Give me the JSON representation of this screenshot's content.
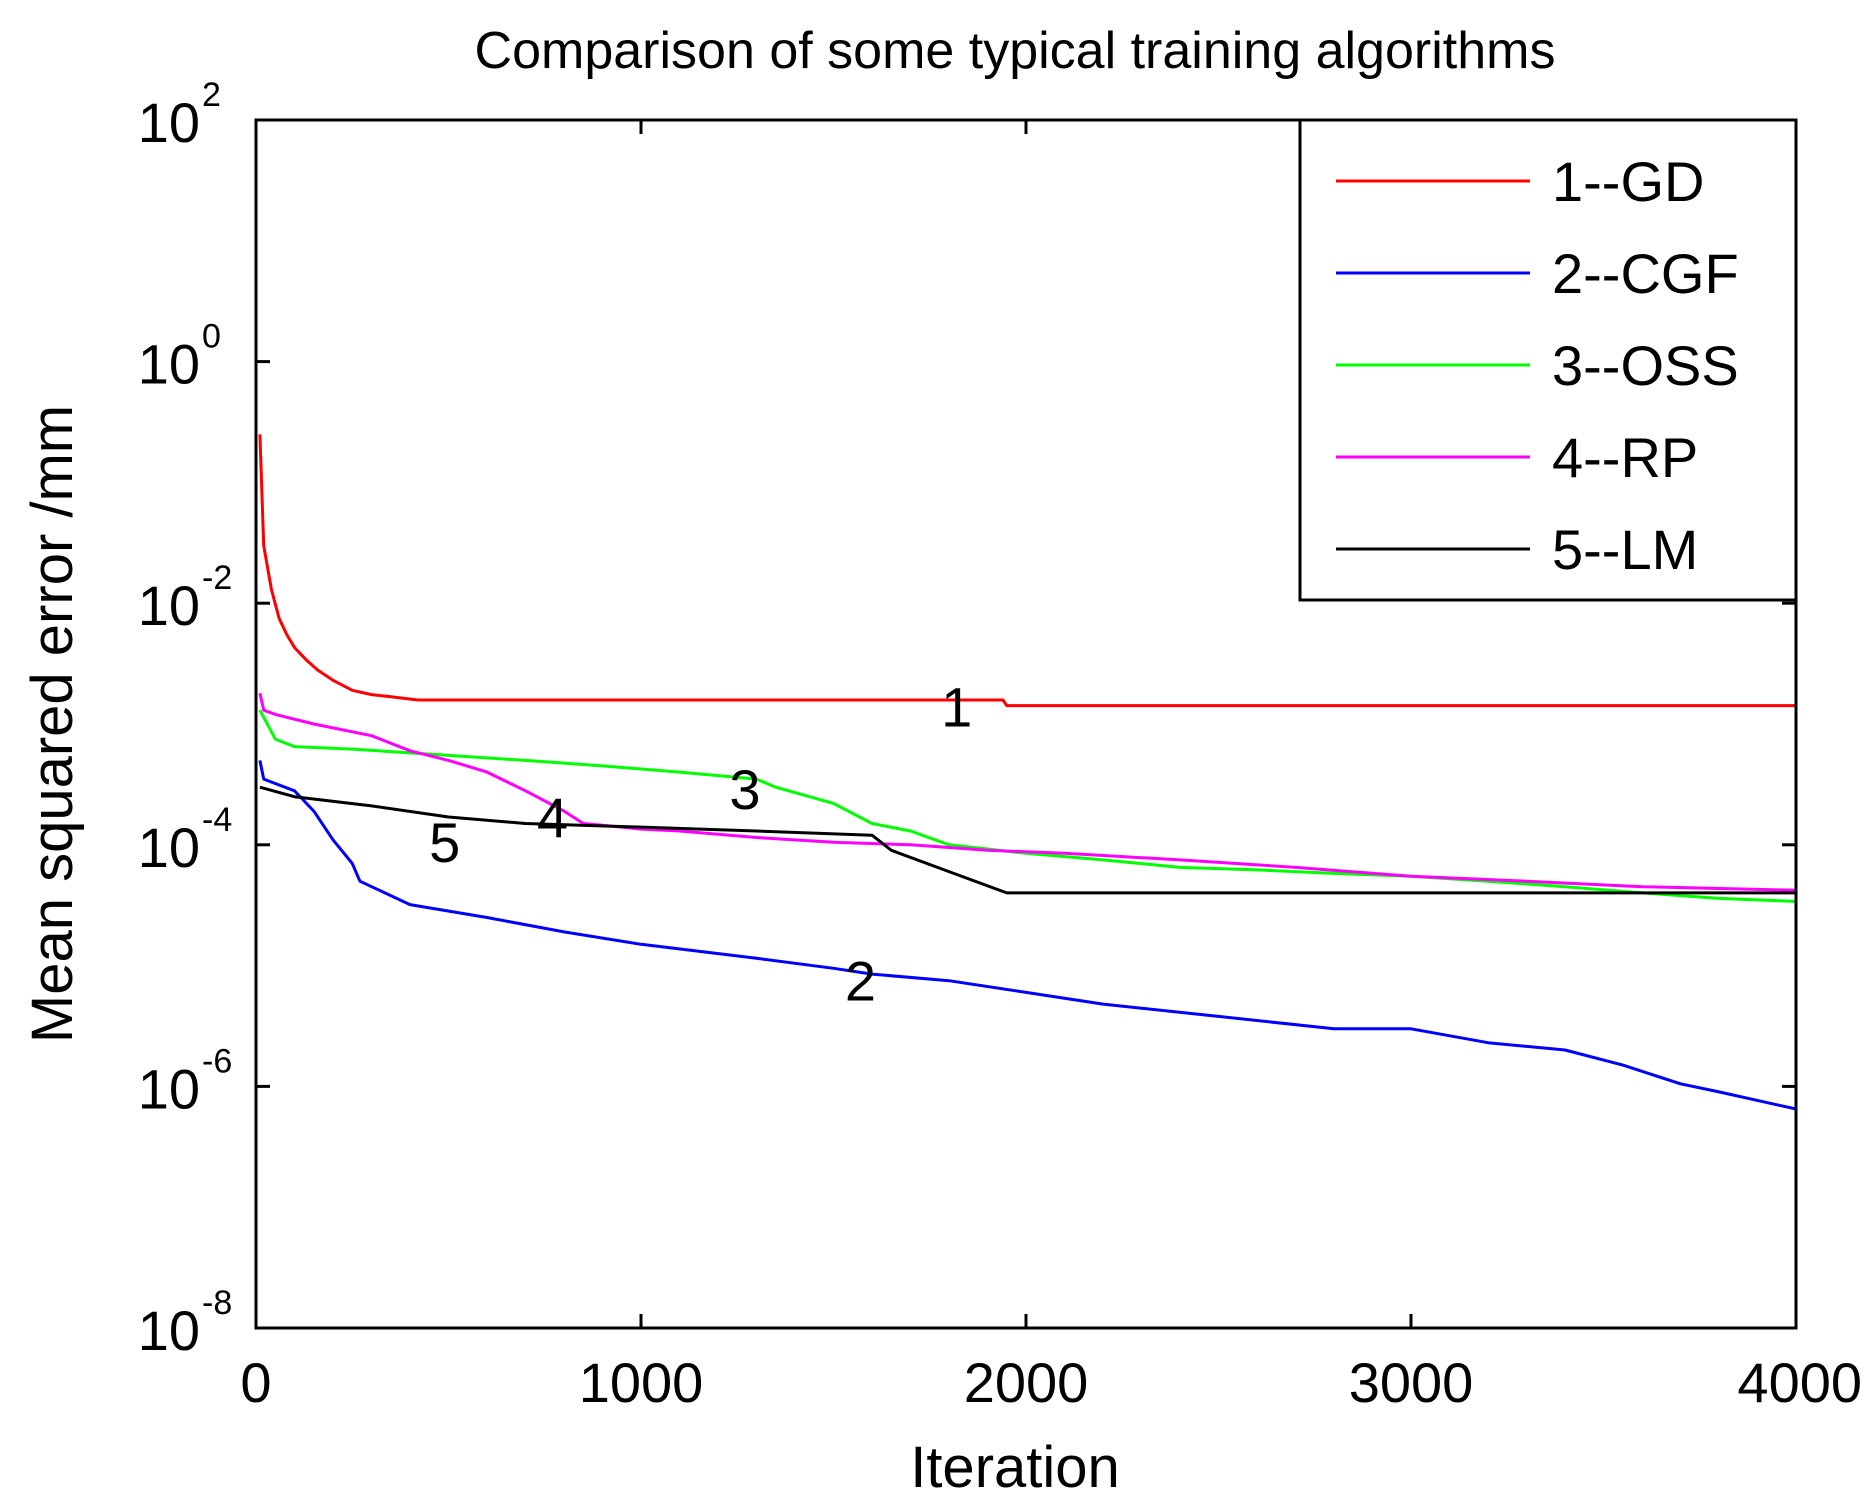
{
  "chart_data": {
    "type": "line",
    "title": "Comparison of some typical training algorithms",
    "xlabel": "Iteration",
    "ylabel": "Mean squared error /mm",
    "xlim": [
      0,
      4000
    ],
    "ylim": [
      1e-08,
      100
    ],
    "yscale": "log",
    "grid": false,
    "legend_position": "top-right",
    "x_ticks": [
      {
        "value": 0,
        "label": "0"
      },
      {
        "value": 1000,
        "label": "1000"
      },
      {
        "value": 2000,
        "label": "2000"
      },
      {
        "value": 3000,
        "label": "3000"
      },
      {
        "value": 4000,
        "label": "4000"
      }
    ],
    "y_ticks": [
      {
        "value": 1e-08,
        "base": "10",
        "exp": "-8"
      },
      {
        "value": 1e-06,
        "base": "10",
        "exp": "-6"
      },
      {
        "value": 0.0001,
        "base": "10",
        "exp": "-4"
      },
      {
        "value": 0.01,
        "base": "10",
        "exp": "-2"
      },
      {
        "value": 1,
        "base": "10",
        "exp": "0"
      },
      {
        "value": 100,
        "base": "10",
        "exp": "2"
      }
    ],
    "series": [
      {
        "name": "1--GD",
        "color": "#ff0000",
        "x": [
          10,
          20,
          40,
          60,
          80,
          100,
          130,
          160,
          200,
          250,
          300,
          350,
          420,
          600,
          1000,
          1500,
          1940,
          1950,
          2500,
          3000,
          3500,
          4000
        ],
        "y": [
          0.25,
          0.03,
          0.013,
          0.0075,
          0.0055,
          0.0043,
          0.0034,
          0.0028,
          0.0023,
          0.0019,
          0.00175,
          0.00168,
          0.00158,
          0.00158,
          0.00158,
          0.00158,
          0.00158,
          0.00142,
          0.00142,
          0.00142,
          0.00142,
          0.00142
        ]
      },
      {
        "name": "2--CGF",
        "color": "#0000ff",
        "x": [
          10,
          20,
          100,
          150,
          200,
          250,
          270,
          350,
          400,
          600,
          800,
          1000,
          1300,
          1500,
          1600,
          1800,
          2000,
          2200,
          2500,
          2800,
          3000,
          3200,
          3400,
          3550,
          3700,
          3800,
          4000
        ],
        "y": [
          0.0005,
          0.00035,
          0.00028,
          0.00019,
          0.00011,
          7e-05,
          5e-05,
          3.8e-05,
          3.2e-05,
          2.5e-05,
          1.9e-05,
          1.5e-05,
          1.15e-05,
          9.5e-06,
          8.5e-06,
          7.5e-06,
          6e-06,
          4.8e-06,
          3.8e-06,
          3e-06,
          3e-06,
          2.3e-06,
          2e-06,
          1.5e-06,
          1.05e-06,
          9e-07,
          6.5e-07
        ]
      },
      {
        "name": "3--OSS",
        "color": "#00ff00",
        "x": [
          10,
          50,
          100,
          250,
          500,
          700,
          900,
          1100,
          1300,
          1350,
          1500,
          1600,
          1700,
          1800,
          2000,
          2200,
          2400,
          2600,
          2800,
          3000,
          3200,
          3400,
          3600,
          3800,
          4000
        ],
        "y": [
          0.0013,
          0.00075,
          0.00065,
          0.00062,
          0.00055,
          0.0005,
          0.00045,
          0.0004,
          0.00035,
          0.0003,
          0.00022,
          0.00015,
          0.00013,
          0.0001,
          8.5e-05,
          7.5e-05,
          6.5e-05,
          6.2e-05,
          5.8e-05,
          5.5e-05,
          5e-05,
          4.5e-05,
          4e-05,
          3.6e-05,
          3.4e-05
        ]
      },
      {
        "name": "4--RP",
        "color": "#ff00ff",
        "x": [
          10,
          20,
          50,
          150,
          300,
          400,
          500,
          600,
          700,
          800,
          850,
          900,
          1000,
          1100,
          1300,
          1500,
          1700,
          1900,
          2100,
          2400,
          2700,
          3000,
          3300,
          3600,
          4000
        ],
        "y": [
          0.0018,
          0.0013,
          0.0012,
          0.001,
          0.0008,
          0.0006,
          0.0005,
          0.0004,
          0.00028,
          0.00019,
          0.00015,
          0.000145,
          0.000135,
          0.00013,
          0.000115,
          0.000105,
          0.0001,
          9e-05,
          8.5e-05,
          7.5e-05,
          6.5e-05,
          5.5e-05,
          5e-05,
          4.5e-05,
          4.2e-05
        ]
      },
      {
        "name": "5--LM",
        "color": "#000000",
        "x": [
          10,
          100,
          300,
          500,
          700,
          1000,
          1300,
          1600,
          1650,
          1800,
          1950,
          2000,
          2500,
          3000,
          3500,
          4000
        ],
        "y": [
          0.0003,
          0.00025,
          0.00021,
          0.00017,
          0.00015,
          0.00014,
          0.00013,
          0.00012,
          9e-05,
          6e-05,
          4e-05,
          4e-05,
          4e-05,
          4e-05,
          4e-05,
          4e-05
        ]
      }
    ],
    "annotations": [
      {
        "text": "1",
        "x": 1820,
        "y": 0.0014
      },
      {
        "text": "2",
        "x": 1570,
        "y": 7.5e-06
      },
      {
        "text": "3",
        "x": 1270,
        "y": 0.00029
      },
      {
        "text": "4",
        "x": 770,
        "y": 0.00017
      },
      {
        "text": "5",
        "x": 490,
        "y": 0.000105
      }
    ]
  }
}
